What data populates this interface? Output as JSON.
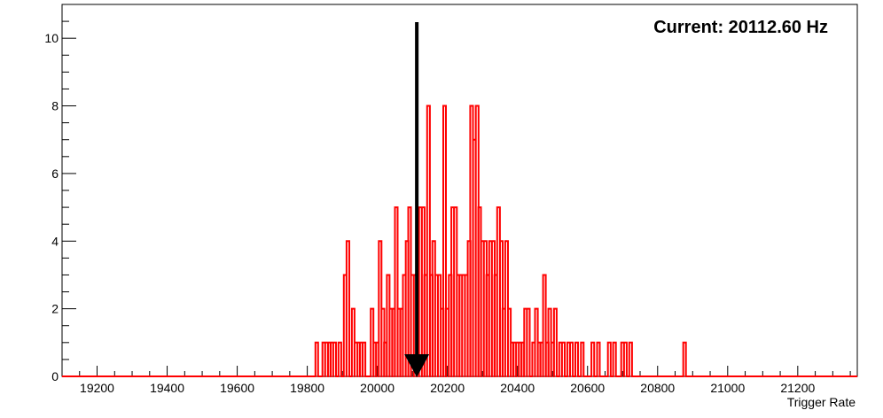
{
  "chart_data": {
    "type": "histogram",
    "xlabel": "Trigger Rate",
    "ylabel": "",
    "title": "",
    "annotation": "Current: 20112.60 Hz",
    "current_value": 20112.6,
    "xlim": [
      19100,
      21370
    ],
    "ylim": [
      0,
      11
    ],
    "x_ticks": [
      19200,
      19400,
      19600,
      19800,
      20000,
      20200,
      20400,
      20600,
      20800,
      21000,
      21200
    ],
    "y_ticks": [
      0,
      2,
      4,
      6,
      8,
      10
    ],
    "series": [
      {
        "color": "#ff0000",
        "bins": [
          {
            "x": 19827,
            "y": 1
          },
          {
            "x": 19847,
            "y": 1
          },
          {
            "x": 19855,
            "y": 1
          },
          {
            "x": 19863,
            "y": 1
          },
          {
            "x": 19870,
            "y": 1
          },
          {
            "x": 19878,
            "y": 1
          },
          {
            "x": 19893,
            "y": 1
          },
          {
            "x": 19908,
            "y": 3
          },
          {
            "x": 19916,
            "y": 4
          },
          {
            "x": 19931,
            "y": 2
          },
          {
            "x": 19939,
            "y": 1
          },
          {
            "x": 19947,
            "y": 1
          },
          {
            "x": 19954,
            "y": 1
          },
          {
            "x": 19962,
            "y": 1
          },
          {
            "x": 19985,
            "y": 2
          },
          {
            "x": 19993,
            "y": 1
          },
          {
            "x": 20000,
            "y": 1
          },
          {
            "x": 20008,
            "y": 4
          },
          {
            "x": 20016,
            "y": 2
          },
          {
            "x": 20023,
            "y": 1
          },
          {
            "x": 20031,
            "y": 3
          },
          {
            "x": 20039,
            "y": 2
          },
          {
            "x": 20046,
            "y": 2
          },
          {
            "x": 20054,
            "y": 5
          },
          {
            "x": 20062,
            "y": 2
          },
          {
            "x": 20069,
            "y": 2
          },
          {
            "x": 20077,
            "y": 3
          },
          {
            "x": 20085,
            "y": 4
          },
          {
            "x": 20092,
            "y": 5
          },
          {
            "x": 20100,
            "y": 3
          },
          {
            "x": 20108,
            "y": 3
          },
          {
            "x": 20115,
            "y": 4
          },
          {
            "x": 20123,
            "y": 5
          },
          {
            "x": 20131,
            "y": 5
          },
          {
            "x": 20138,
            "y": 3
          },
          {
            "x": 20146,
            "y": 8
          },
          {
            "x": 20154,
            "y": 3
          },
          {
            "x": 20161,
            "y": 4
          },
          {
            "x": 20169,
            "y": 3
          },
          {
            "x": 20177,
            "y": 3
          },
          {
            "x": 20185,
            "y": 2
          },
          {
            "x": 20192,
            "y": 8
          },
          {
            "x": 20200,
            "y": 2
          },
          {
            "x": 20208,
            "y": 3
          },
          {
            "x": 20215,
            "y": 5
          },
          {
            "x": 20223,
            "y": 5
          },
          {
            "x": 20231,
            "y": 3
          },
          {
            "x": 20238,
            "y": 3
          },
          {
            "x": 20246,
            "y": 3
          },
          {
            "x": 20254,
            "y": 3
          },
          {
            "x": 20262,
            "y": 4
          },
          {
            "x": 20269,
            "y": 8
          },
          {
            "x": 20277,
            "y": 7
          },
          {
            "x": 20285,
            "y": 8
          },
          {
            "x": 20292,
            "y": 5
          },
          {
            "x": 20300,
            "y": 4
          },
          {
            "x": 20308,
            "y": 4
          },
          {
            "x": 20315,
            "y": 3
          },
          {
            "x": 20323,
            "y": 4
          },
          {
            "x": 20331,
            "y": 4
          },
          {
            "x": 20338,
            "y": 3
          },
          {
            "x": 20346,
            "y": 5
          },
          {
            "x": 20354,
            "y": 4
          },
          {
            "x": 20361,
            "y": 2
          },
          {
            "x": 20369,
            "y": 4
          },
          {
            "x": 20377,
            "y": 2
          },
          {
            "x": 20385,
            "y": 1
          },
          {
            "x": 20392,
            "y": 1
          },
          {
            "x": 20400,
            "y": 1
          },
          {
            "x": 20408,
            "y": 1
          },
          {
            "x": 20415,
            "y": 1
          },
          {
            "x": 20423,
            "y": 2
          },
          {
            "x": 20431,
            "y": 2
          },
          {
            "x": 20446,
            "y": 1
          },
          {
            "x": 20454,
            "y": 2
          },
          {
            "x": 20462,
            "y": 1
          },
          {
            "x": 20469,
            "y": 1
          },
          {
            "x": 20477,
            "y": 3
          },
          {
            "x": 20485,
            "y": 1
          },
          {
            "x": 20492,
            "y": 2
          },
          {
            "x": 20500,
            "y": 1
          },
          {
            "x": 20508,
            "y": 2
          },
          {
            "x": 20523,
            "y": 1
          },
          {
            "x": 20531,
            "y": 1
          },
          {
            "x": 20546,
            "y": 1
          },
          {
            "x": 20554,
            "y": 1
          },
          {
            "x": 20569,
            "y": 1
          },
          {
            "x": 20585,
            "y": 1
          },
          {
            "x": 20615,
            "y": 1
          },
          {
            "x": 20631,
            "y": 1
          },
          {
            "x": 20662,
            "y": 1
          },
          {
            "x": 20677,
            "y": 1
          },
          {
            "x": 20700,
            "y": 1
          },
          {
            "x": 20708,
            "y": 1
          },
          {
            "x": 20723,
            "y": 1
          },
          {
            "x": 20877,
            "y": 1
          }
        ]
      }
    ],
    "grid": false,
    "legend": "none"
  }
}
